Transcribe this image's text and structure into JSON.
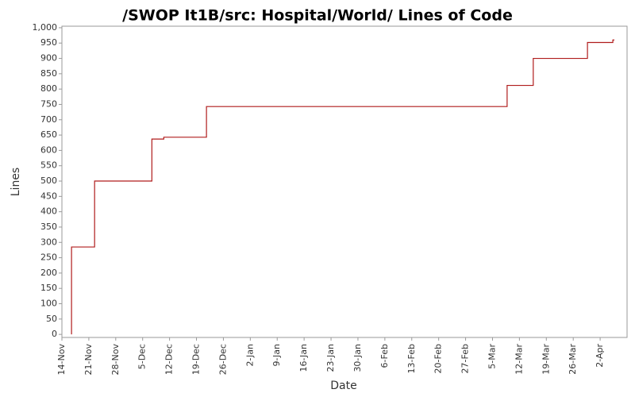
{
  "chart_data": {
    "type": "line",
    "title": "/SWOP It1B/src: Hospital/World/ Lines of Code",
    "x_label": "Date",
    "y_label": "Lines",
    "step": true,
    "x": [
      2.5,
      2.5,
      8.5,
      8.5,
      23.4,
      23.4,
      26.5,
      26.5,
      37.6,
      37.6,
      115.8,
      115.8,
      122.6,
      122.6,
      136.7,
      136.7,
      143.3,
      143.3,
      143.7
    ],
    "series": [
      {
        "name": "Lines",
        "color": "#b01c1c",
        "values": [
          0,
          285,
          285,
          500,
          500,
          637,
          637,
          643,
          643,
          743,
          743,
          812,
          812,
          900,
          900,
          952,
          952,
          960,
          960
        ]
      }
    ],
    "xlim": [
      0,
      147
    ],
    "ylim": [
      -10,
      1005
    ],
    "xticks": [
      {
        "value": 0,
        "label": "14-Nov"
      },
      {
        "value": 7,
        "label": "21-Nov"
      },
      {
        "value": 14,
        "label": "28-Nov"
      },
      {
        "value": 21,
        "label": "5-Dec"
      },
      {
        "value": 28,
        "label": "12-Dec"
      },
      {
        "value": 35,
        "label": "19-Dec"
      },
      {
        "value": 42,
        "label": "26-Dec"
      },
      {
        "value": 49,
        "label": "2-Jan"
      },
      {
        "value": 56,
        "label": "9-Jan"
      },
      {
        "value": 63,
        "label": "16-Jan"
      },
      {
        "value": 70,
        "label": "23-Jan"
      },
      {
        "value": 77,
        "label": "30-Jan"
      },
      {
        "value": 84,
        "label": "6-Feb"
      },
      {
        "value": 91,
        "label": "13-Feb"
      },
      {
        "value": 98,
        "label": "20-Feb"
      },
      {
        "value": 105,
        "label": "27-Feb"
      },
      {
        "value": 112,
        "label": "5-Mar"
      },
      {
        "value": 119,
        "label": "12-Mar"
      },
      {
        "value": 126,
        "label": "19-Mar"
      },
      {
        "value": 133,
        "label": "26-Mar"
      },
      {
        "value": 140,
        "label": "2-Apr"
      }
    ],
    "yticks": [
      0,
      50,
      100,
      150,
      200,
      250,
      300,
      350,
      400,
      450,
      500,
      550,
      600,
      650,
      700,
      750,
      800,
      850,
      900,
      950,
      {
        "value": 1000,
        "label": "1,000"
      }
    ]
  }
}
